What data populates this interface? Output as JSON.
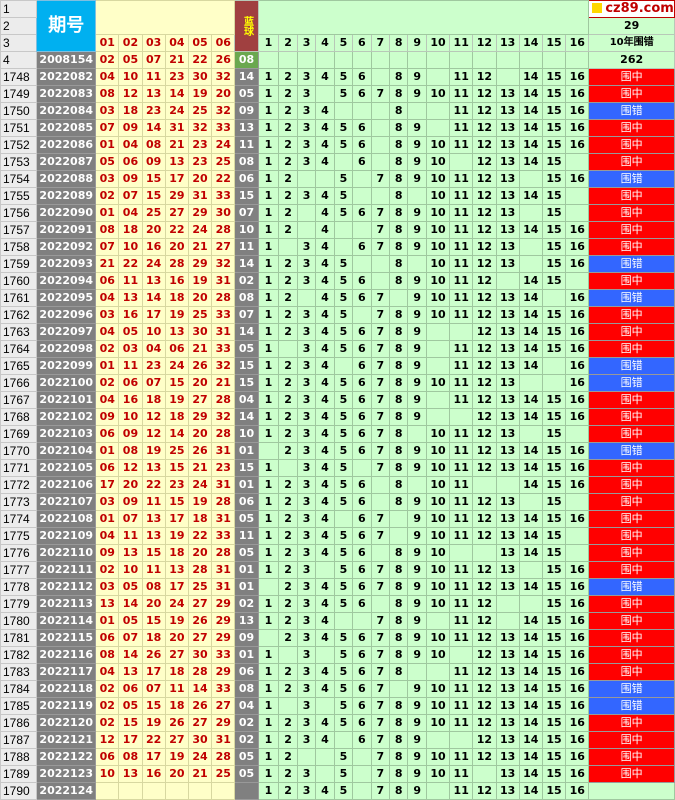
{
  "header": {
    "title": "期号",
    "blue_label": "蓝球",
    "logo": "cz89.com",
    "row_labels": [
      "1",
      "2",
      "3",
      "4"
    ],
    "count_top": "29",
    "count_label": "10年围错",
    "count_bottom": "262",
    "zone_numbers": [
      "1",
      "2",
      "3",
      "4",
      "5",
      "6",
      "7",
      "8",
      "9",
      "10",
      "11",
      "12",
      "13",
      "14",
      "15",
      "16"
    ],
    "red_pos": [
      "01",
      "02",
      "03",
      "04",
      "05",
      "06"
    ],
    "first_period": "2008154",
    "first_reds": [
      "02",
      "05",
      "07",
      "21",
      "22",
      "26"
    ],
    "first_blue": "08"
  },
  "rows": [
    {
      "n": "1748",
      "p": "2022082",
      "r": [
        "04",
        "10",
        "11",
        "23",
        "30",
        "32"
      ],
      "b": "14",
      "z": [
        1,
        2,
        3,
        4,
        5,
        6,
        0,
        8,
        9,
        0,
        11,
        12,
        0,
        14,
        15,
        16
      ],
      "res": "围中"
    },
    {
      "n": "1749",
      "p": "2022083",
      "r": [
        "08",
        "12",
        "13",
        "14",
        "19",
        "20"
      ],
      "b": "05",
      "z": [
        1,
        2,
        3,
        0,
        5,
        6,
        7,
        8,
        9,
        10,
        11,
        12,
        13,
        14,
        15,
        16
      ],
      "res": "围中"
    },
    {
      "n": "1750",
      "p": "2022084",
      "r": [
        "03",
        "18",
        "23",
        "24",
        "25",
        "32"
      ],
      "b": "09",
      "z": [
        1,
        2,
        3,
        4,
        0,
        0,
        0,
        8,
        0,
        0,
        11,
        12,
        13,
        14,
        15,
        16
      ],
      "res": "围错"
    },
    {
      "n": "1751",
      "p": "2022085",
      "r": [
        "07",
        "09",
        "14",
        "31",
        "32",
        "33"
      ],
      "b": "13",
      "z": [
        1,
        2,
        3,
        4,
        5,
        6,
        0,
        8,
        9,
        0,
        11,
        12,
        13,
        14,
        15,
        16
      ],
      "res": "围中"
    },
    {
      "n": "1752",
      "p": "2022086",
      "r": [
        "01",
        "04",
        "08",
        "21",
        "23",
        "24"
      ],
      "b": "11",
      "z": [
        1,
        2,
        3,
        4,
        5,
        6,
        0,
        8,
        9,
        10,
        11,
        12,
        13,
        14,
        15,
        16
      ],
      "res": "围中"
    },
    {
      "n": "1753",
      "p": "2022087",
      "r": [
        "05",
        "06",
        "09",
        "13",
        "23",
        "25"
      ],
      "b": "08",
      "z": [
        1,
        2,
        3,
        4,
        0,
        6,
        0,
        8,
        9,
        10,
        0,
        12,
        13,
        14,
        15,
        0
      ],
      "res": "围中"
    },
    {
      "n": "1754",
      "p": "2022088",
      "r": [
        "03",
        "09",
        "15",
        "17",
        "20",
        "22"
      ],
      "b": "06",
      "z": [
        1,
        2,
        0,
        0,
        5,
        0,
        7,
        8,
        9,
        10,
        11,
        12,
        13,
        0,
        15,
        16
      ],
      "res": "围错"
    },
    {
      "n": "1755",
      "p": "2022089",
      "r": [
        "02",
        "07",
        "15",
        "29",
        "31",
        "33"
      ],
      "b": "15",
      "z": [
        1,
        2,
        3,
        4,
        5,
        0,
        0,
        8,
        0,
        10,
        11,
        12,
        13,
        14,
        15,
        0
      ],
      "res": "围中"
    },
    {
      "n": "1756",
      "p": "2022090",
      "r": [
        "01",
        "04",
        "25",
        "27",
        "29",
        "30"
      ],
      "b": "07",
      "z": [
        1,
        2,
        0,
        4,
        5,
        6,
        7,
        8,
        9,
        10,
        11,
        12,
        13,
        0,
        15,
        0
      ],
      "res": "围中"
    },
    {
      "n": "1757",
      "p": "2022091",
      "r": [
        "08",
        "18",
        "20",
        "22",
        "24",
        "28"
      ],
      "b": "10",
      "z": [
        1,
        2,
        0,
        4,
        0,
        0,
        7,
        8,
        9,
        10,
        11,
        12,
        13,
        14,
        15,
        16
      ],
      "res": "围中"
    },
    {
      "n": "1758",
      "p": "2022092",
      "r": [
        "07",
        "10",
        "16",
        "20",
        "21",
        "27"
      ],
      "b": "11",
      "z": [
        1,
        0,
        3,
        4,
        0,
        6,
        7,
        8,
        9,
        10,
        11,
        12,
        13,
        0,
        15,
        16
      ],
      "res": "围中"
    },
    {
      "n": "1759",
      "p": "2022093",
      "r": [
        "21",
        "22",
        "24",
        "28",
        "29",
        "32"
      ],
      "b": "14",
      "z": [
        1,
        2,
        3,
        4,
        5,
        0,
        0,
        8,
        0,
        10,
        11,
        12,
        13,
        0,
        15,
        16
      ],
      "res": "围错"
    },
    {
      "n": "1760",
      "p": "2022094",
      "r": [
        "06",
        "11",
        "13",
        "16",
        "19",
        "31"
      ],
      "b": "02",
      "z": [
        1,
        2,
        3,
        4,
        5,
        6,
        0,
        8,
        9,
        10,
        11,
        12,
        0,
        14,
        15,
        0
      ],
      "res": "围中"
    },
    {
      "n": "1761",
      "p": "2022095",
      "r": [
        "04",
        "13",
        "14",
        "18",
        "20",
        "28"
      ],
      "b": "08",
      "z": [
        1,
        2,
        0,
        4,
        5,
        6,
        7,
        0,
        9,
        10,
        11,
        12,
        13,
        14,
        0,
        16
      ],
      "res": "围错"
    },
    {
      "n": "1762",
      "p": "2022096",
      "r": [
        "03",
        "16",
        "17",
        "19",
        "25",
        "33"
      ],
      "b": "07",
      "z": [
        1,
        2,
        3,
        4,
        5,
        0,
        7,
        8,
        9,
        10,
        11,
        12,
        13,
        14,
        15,
        16
      ],
      "res": "围中"
    },
    {
      "n": "1763",
      "p": "2022097",
      "r": [
        "04",
        "05",
        "10",
        "13",
        "30",
        "31"
      ],
      "b": "14",
      "z": [
        1,
        2,
        3,
        4,
        5,
        6,
        7,
        8,
        9,
        0,
        0,
        12,
        13,
        14,
        15,
        16
      ],
      "res": "围中"
    },
    {
      "n": "1764",
      "p": "2022098",
      "r": [
        "02",
        "03",
        "04",
        "06",
        "21",
        "33"
      ],
      "b": "05",
      "z": [
        1,
        0,
        3,
        4,
        5,
        6,
        7,
        8,
        9,
        0,
        11,
        12,
        13,
        14,
        15,
        16
      ],
      "res": "围中"
    },
    {
      "n": "1765",
      "p": "2022099",
      "r": [
        "01",
        "11",
        "23",
        "24",
        "26",
        "32"
      ],
      "b": "15",
      "z": [
        1,
        2,
        3,
        4,
        0,
        6,
        7,
        8,
        9,
        0,
        11,
        12,
        13,
        14,
        0,
        16
      ],
      "res": "围错"
    },
    {
      "n": "1766",
      "p": "2022100",
      "r": [
        "02",
        "06",
        "07",
        "15",
        "20",
        "21"
      ],
      "b": "15",
      "z": [
        1,
        2,
        3,
        4,
        5,
        6,
        7,
        8,
        9,
        10,
        11,
        12,
        13,
        0,
        0,
        16
      ],
      "res": "围错"
    },
    {
      "n": "1767",
      "p": "2022101",
      "r": [
        "04",
        "16",
        "18",
        "19",
        "27",
        "28"
      ],
      "b": "04",
      "z": [
        1,
        2,
        3,
        4,
        5,
        6,
        7,
        8,
        9,
        0,
        11,
        12,
        13,
        14,
        15,
        16
      ],
      "res": "围中"
    },
    {
      "n": "1768",
      "p": "2022102",
      "r": [
        "09",
        "10",
        "12",
        "18",
        "29",
        "32"
      ],
      "b": "14",
      "z": [
        1,
        2,
        3,
        4,
        5,
        6,
        7,
        8,
        9,
        0,
        0,
        12,
        13,
        14,
        15,
        16
      ],
      "res": "围中"
    },
    {
      "n": "1769",
      "p": "2022103",
      "r": [
        "06",
        "09",
        "12",
        "14",
        "20",
        "28"
      ],
      "b": "10",
      "z": [
        1,
        2,
        3,
        4,
        5,
        6,
        7,
        8,
        0,
        10,
        11,
        12,
        13,
        0,
        15,
        0
      ],
      "res": "围中"
    },
    {
      "n": "1770",
      "p": "2022104",
      "r": [
        "01",
        "08",
        "19",
        "25",
        "26",
        "31"
      ],
      "b": "01",
      "z": [
        0,
        2,
        3,
        4,
        5,
        6,
        7,
        8,
        9,
        10,
        11,
        12,
        13,
        14,
        15,
        16
      ],
      "res": "围错"
    },
    {
      "n": "1771",
      "p": "2022105",
      "r": [
        "06",
        "12",
        "13",
        "15",
        "21",
        "23"
      ],
      "b": "15",
      "z": [
        1,
        0,
        3,
        4,
        5,
        0,
        7,
        8,
        9,
        10,
        11,
        12,
        13,
        14,
        15,
        16
      ],
      "res": "围中"
    },
    {
      "n": "1772",
      "p": "2022106",
      "r": [
        "17",
        "20",
        "22",
        "23",
        "24",
        "31"
      ],
      "b": "01",
      "z": [
        1,
        2,
        3,
        4,
        5,
        6,
        0,
        8,
        0,
        10,
        11,
        0,
        0,
        14,
        15,
        16
      ],
      "res": "围中"
    },
    {
      "n": "1773",
      "p": "2022107",
      "r": [
        "03",
        "09",
        "11",
        "15",
        "19",
        "28"
      ],
      "b": "06",
      "z": [
        1,
        2,
        3,
        4,
        5,
        6,
        0,
        8,
        9,
        10,
        11,
        12,
        13,
        0,
        15,
        0
      ],
      "res": "围中"
    },
    {
      "n": "1774",
      "p": "2022108",
      "r": [
        "01",
        "07",
        "13",
        "17",
        "18",
        "31"
      ],
      "b": "05",
      "z": [
        1,
        2,
        3,
        4,
        0,
        6,
        7,
        0,
        9,
        10,
        11,
        12,
        13,
        14,
        15,
        16
      ],
      "res": "围中"
    },
    {
      "n": "1775",
      "p": "2022109",
      "r": [
        "04",
        "11",
        "13",
        "19",
        "22",
        "33"
      ],
      "b": "11",
      "z": [
        1,
        2,
        3,
        4,
        5,
        6,
        7,
        0,
        9,
        10,
        11,
        12,
        13,
        14,
        15,
        0
      ],
      "res": "围中"
    },
    {
      "n": "1776",
      "p": "2022110",
      "r": [
        "09",
        "13",
        "15",
        "18",
        "20",
        "28"
      ],
      "b": "05",
      "z": [
        1,
        2,
        3,
        4,
        5,
        6,
        0,
        8,
        9,
        10,
        0,
        0,
        13,
        14,
        15,
        0
      ],
      "res": "围中"
    },
    {
      "n": "1777",
      "p": "2022111",
      "r": [
        "02",
        "10",
        "11",
        "13",
        "28",
        "31"
      ],
      "b": "01",
      "z": [
        1,
        2,
        3,
        0,
        5,
        6,
        7,
        8,
        9,
        10,
        11,
        12,
        13,
        0,
        15,
        16
      ],
      "res": "围中"
    },
    {
      "n": "1778",
      "p": "2022112",
      "r": [
        "03",
        "05",
        "08",
        "17",
        "25",
        "31"
      ],
      "b": "01",
      "z": [
        0,
        2,
        3,
        4,
        5,
        6,
        7,
        8,
        9,
        10,
        11,
        12,
        13,
        14,
        15,
        16
      ],
      "res": "围错"
    },
    {
      "n": "1779",
      "p": "2022113",
      "r": [
        "13",
        "14",
        "20",
        "24",
        "27",
        "29"
      ],
      "b": "02",
      "z": [
        1,
        2,
        3,
        4,
        5,
        6,
        0,
        8,
        9,
        10,
        11,
        12,
        0,
        0,
        15,
        16
      ],
      "res": "围中"
    },
    {
      "n": "1780",
      "p": "2022114",
      "r": [
        "01",
        "05",
        "15",
        "19",
        "26",
        "29"
      ],
      "b": "13",
      "z": [
        1,
        2,
        3,
        4,
        0,
        0,
        7,
        8,
        9,
        0,
        11,
        12,
        0,
        14,
        15,
        16
      ],
      "res": "围中"
    },
    {
      "n": "1781",
      "p": "2022115",
      "r": [
        "06",
        "07",
        "18",
        "20",
        "27",
        "29"
      ],
      "b": "09",
      "z": [
        0,
        2,
        3,
        4,
        5,
        6,
        7,
        8,
        9,
        10,
        11,
        12,
        13,
        14,
        15,
        16
      ],
      "res": "围中"
    },
    {
      "n": "1782",
      "p": "2022116",
      "r": [
        "08",
        "14",
        "26",
        "27",
        "30",
        "33"
      ],
      "b": "01",
      "z": [
        1,
        0,
        3,
        0,
        5,
        6,
        7,
        8,
        9,
        10,
        0,
        12,
        13,
        14,
        15,
        16
      ],
      "res": "围中"
    },
    {
      "n": "1783",
      "p": "2022117",
      "r": [
        "04",
        "13",
        "17",
        "18",
        "28",
        "29"
      ],
      "b": "06",
      "z": [
        1,
        2,
        3,
        4,
        5,
        6,
        7,
        8,
        0,
        0,
        11,
        12,
        13,
        14,
        15,
        16
      ],
      "res": "围中"
    },
    {
      "n": "1784",
      "p": "2022118",
      "r": [
        "02",
        "06",
        "07",
        "11",
        "14",
        "33"
      ],
      "b": "08",
      "z": [
        1,
        2,
        3,
        4,
        5,
        6,
        7,
        0,
        9,
        10,
        11,
        12,
        13,
        14,
        15,
        16
      ],
      "res": "围错"
    },
    {
      "n": "1785",
      "p": "2022119",
      "r": [
        "02",
        "05",
        "15",
        "18",
        "26",
        "27"
      ],
      "b": "04",
      "z": [
        1,
        0,
        3,
        0,
        5,
        6,
        7,
        8,
        9,
        10,
        11,
        12,
        13,
        14,
        15,
        16
      ],
      "res": "围错"
    },
    {
      "n": "1786",
      "p": "2022120",
      "r": [
        "02",
        "15",
        "19",
        "26",
        "27",
        "29"
      ],
      "b": "02",
      "z": [
        1,
        2,
        3,
        4,
        5,
        6,
        7,
        8,
        9,
        10,
        11,
        12,
        13,
        14,
        15,
        16
      ],
      "res": "围中"
    },
    {
      "n": "1787",
      "p": "2022121",
      "r": [
        "12",
        "17",
        "22",
        "27",
        "30",
        "31"
      ],
      "b": "02",
      "z": [
        1,
        2,
        3,
        4,
        0,
        6,
        7,
        8,
        9,
        0,
        0,
        12,
        13,
        14,
        15,
        16
      ],
      "res": "围中"
    },
    {
      "n": "1788",
      "p": "2022122",
      "r": [
        "06",
        "08",
        "17",
        "19",
        "24",
        "28"
      ],
      "b": "05",
      "z": [
        1,
        2,
        0,
        0,
        5,
        0,
        7,
        8,
        9,
        10,
        11,
        12,
        13,
        14,
        15,
        16
      ],
      "res": "围中"
    },
    {
      "n": "1789",
      "p": "2022123",
      "r": [
        "10",
        "13",
        "16",
        "20",
        "21",
        "25"
      ],
      "b": "05",
      "z": [
        1,
        2,
        3,
        0,
        5,
        0,
        7,
        8,
        9,
        10,
        11,
        0,
        13,
        14,
        15,
        16
      ],
      "res": "围中"
    },
    {
      "n": "1790",
      "p": "2022124",
      "r": [
        "",
        "",
        "",
        "",
        "",
        ""
      ],
      "b": "",
      "z": [
        1,
        2,
        3,
        4,
        5,
        0,
        7,
        8,
        9,
        0,
        11,
        12,
        13,
        14,
        15,
        16
      ],
      "res": ""
    }
  ],
  "colors": {
    "hit": "#ff0000",
    "miss": "#3366ff",
    "zone": "#ccffcc",
    "period_bg": "#808080",
    "title_bg": "#00b0f0"
  }
}
